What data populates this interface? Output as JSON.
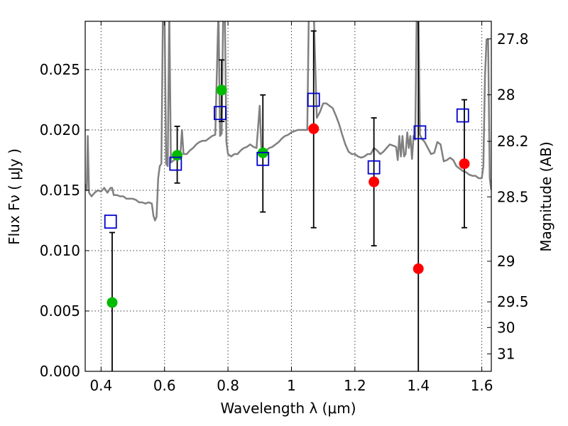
{
  "chart_data": {
    "type": "scatter",
    "xlabel": "Wavelength  λ (μm)",
    "ylabel": "Flux  Fν  ( μJy )",
    "y2label": "Magnitude (AB)",
    "xlim": [
      0.35,
      1.63
    ],
    "ylim": [
      0.0,
      0.029
    ],
    "x_ticks": [
      {
        "value": 0.4,
        "label": "0.4"
      },
      {
        "value": 0.6,
        "label": "0.6"
      },
      {
        "value": 0.8,
        "label": "0.8"
      },
      {
        "value": 1.0,
        "label": "1"
      },
      {
        "value": 1.2,
        "label": "1.2"
      },
      {
        "value": 1.4,
        "label": "1.4"
      },
      {
        "value": 1.6,
        "label": "1.6"
      }
    ],
    "y_ticks": [
      {
        "value": 0.0,
        "label": "0.000"
      },
      {
        "value": 0.005,
        "label": "0.005"
      },
      {
        "value": 0.01,
        "label": "0.010"
      },
      {
        "value": 0.015,
        "label": "0.015"
      },
      {
        "value": 0.02,
        "label": "0.020"
      },
      {
        "value": 0.025,
        "label": "0.025"
      }
    ],
    "mag_ticks": [
      {
        "value": 27.8,
        "label": "27.8"
      },
      {
        "value": 28.0,
        "label": "28"
      },
      {
        "value": 28.2,
        "label": "28.2"
      },
      {
        "value": 28.5,
        "label": "28.5"
      },
      {
        "value": 29.0,
        "label": "29"
      },
      {
        "value": 29.5,
        "label": "29.5"
      },
      {
        "value": 30.0,
        "label": "30"
      },
      {
        "value": 31.0,
        "label": "31"
      }
    ],
    "grid": true,
    "colors": {
      "model": "#808080",
      "observed_green": "#00bb00",
      "observed_red": "#ff0000",
      "model_box": "#0000cc",
      "errorbar": "#000000"
    },
    "model_spectrum": [
      [
        0.35,
        0.0155
      ],
      [
        0.355,
        0.015
      ],
      [
        0.358,
        0.0195
      ],
      [
        0.362,
        0.0148
      ],
      [
        0.37,
        0.0145
      ],
      [
        0.38,
        0.0148
      ],
      [
        0.39,
        0.015
      ],
      [
        0.4,
        0.0149
      ],
      [
        0.41,
        0.0152
      ],
      [
        0.42,
        0.0148
      ],
      [
        0.43,
        0.0152
      ],
      [
        0.435,
        0.0152
      ],
      [
        0.44,
        0.0146
      ],
      [
        0.45,
        0.0146
      ],
      [
        0.46,
        0.0145
      ],
      [
        0.47,
        0.0145
      ],
      [
        0.48,
        0.0143
      ],
      [
        0.49,
        0.0143
      ],
      [
        0.5,
        0.0143
      ],
      [
        0.51,
        0.0142
      ],
      [
        0.52,
        0.014
      ],
      [
        0.53,
        0.014
      ],
      [
        0.54,
        0.0139
      ],
      [
        0.55,
        0.014
      ],
      [
        0.56,
        0.0139
      ],
      [
        0.565,
        0.0129
      ],
      [
        0.57,
        0.0125
      ],
      [
        0.575,
        0.0128
      ],
      [
        0.58,
        0.016
      ],
      [
        0.585,
        0.017
      ],
      [
        0.59,
        0.0172
      ],
      [
        0.595,
        0.03
      ],
      [
        0.6,
        0.03
      ],
      [
        0.605,
        0.0172
      ],
      [
        0.61,
        0.017
      ],
      [
        0.615,
        0.03
      ],
      [
        0.62,
        0.0173
      ],
      [
        0.63,
        0.0175
      ],
      [
        0.64,
        0.0178
      ],
      [
        0.65,
        0.018
      ],
      [
        0.655,
        0.02
      ],
      [
        0.66,
        0.018
      ],
      [
        0.67,
        0.018
      ],
      [
        0.68,
        0.0183
      ],
      [
        0.69,
        0.0185
      ],
      [
        0.7,
        0.0188
      ],
      [
        0.71,
        0.019
      ],
      [
        0.72,
        0.0191
      ],
      [
        0.73,
        0.0191
      ],
      [
        0.74,
        0.0193
      ],
      [
        0.75,
        0.0195
      ],
      [
        0.76,
        0.0196
      ],
      [
        0.77,
        0.03
      ],
      [
        0.775,
        0.0195
      ],
      [
        0.78,
        0.0197
      ],
      [
        0.785,
        0.03
      ],
      [
        0.79,
        0.03
      ],
      [
        0.795,
        0.019
      ],
      [
        0.8,
        0.018
      ],
      [
        0.81,
        0.0178
      ],
      [
        0.82,
        0.018
      ],
      [
        0.83,
        0.018
      ],
      [
        0.84,
        0.0183
      ],
      [
        0.85,
        0.0185
      ],
      [
        0.86,
        0.0186
      ],
      [
        0.87,
        0.0188
      ],
      [
        0.88,
        0.0186
      ],
      [
        0.89,
        0.0185
      ],
      [
        0.9,
        0.022
      ],
      [
        0.905,
        0.0186
      ],
      [
        0.91,
        0.0185
      ],
      [
        0.92,
        0.0183
      ],
      [
        0.93,
        0.0185
      ],
      [
        0.94,
        0.0186
      ],
      [
        0.95,
        0.0188
      ],
      [
        0.96,
        0.019
      ],
      [
        0.97,
        0.0193
      ],
      [
        0.98,
        0.0195
      ],
      [
        0.99,
        0.0196
      ],
      [
        1.0,
        0.0198
      ],
      [
        1.01,
        0.0199
      ],
      [
        1.02,
        0.02
      ],
      [
        1.03,
        0.02
      ],
      [
        1.04,
        0.02
      ],
      [
        1.05,
        0.02
      ],
      [
        1.055,
        0.03
      ],
      [
        1.06,
        0.03
      ],
      [
        1.065,
        0.03
      ],
      [
        1.07,
        0.03
      ],
      [
        1.08,
        0.021
      ],
      [
        1.09,
        0.0215
      ],
      [
        1.1,
        0.0222
      ],
      [
        1.11,
        0.0222
      ],
      [
        1.12,
        0.022
      ],
      [
        1.13,
        0.0218
      ],
      [
        1.14,
        0.0212
      ],
      [
        1.15,
        0.0205
      ],
      [
        1.16,
        0.0196
      ],
      [
        1.17,
        0.0188
      ],
      [
        1.18,
        0.0182
      ],
      [
        1.19,
        0.018
      ],
      [
        1.2,
        0.018
      ],
      [
        1.21,
        0.0178
      ],
      [
        1.22,
        0.0177
      ],
      [
        1.23,
        0.0178
      ],
      [
        1.24,
        0.018
      ],
      [
        1.25,
        0.018
      ],
      [
        1.26,
        0.0185
      ],
      [
        1.27,
        0.0183
      ],
      [
        1.28,
        0.018
      ],
      [
        1.29,
        0.0182
      ],
      [
        1.3,
        0.0185
      ],
      [
        1.31,
        0.0188
      ],
      [
        1.32,
        0.0187
      ],
      [
        1.33,
        0.0186
      ],
      [
        1.335,
        0.0175
      ],
      [
        1.34,
        0.0195
      ],
      [
        1.345,
        0.0178
      ],
      [
        1.35,
        0.0195
      ],
      [
        1.355,
        0.0178
      ],
      [
        1.36,
        0.018
      ],
      [
        1.365,
        0.0198
      ],
      [
        1.37,
        0.0185
      ],
      [
        1.375,
        0.0195
      ],
      [
        1.38,
        0.0176
      ],
      [
        1.385,
        0.0195
      ],
      [
        1.39,
        0.0192
      ],
      [
        1.395,
        0.03
      ],
      [
        1.4,
        0.03
      ],
      [
        1.405,
        0.0196
      ],
      [
        1.41,
        0.0193
      ],
      [
        1.42,
        0.019
      ],
      [
        1.43,
        0.0185
      ],
      [
        1.44,
        0.018
      ],
      [
        1.45,
        0.0181
      ],
      [
        1.46,
        0.019
      ],
      [
        1.47,
        0.0188
      ],
      [
        1.48,
        0.0174
      ],
      [
        1.49,
        0.0175
      ],
      [
        1.5,
        0.0177
      ],
      [
        1.51,
        0.0175
      ],
      [
        1.52,
        0.017
      ],
      [
        1.53,
        0.0168
      ],
      [
        1.54,
        0.0166
      ],
      [
        1.55,
        0.0165
      ],
      [
        1.56,
        0.0163
      ],
      [
        1.57,
        0.0162
      ],
      [
        1.58,
        0.0162
      ],
      [
        1.59,
        0.016
      ],
      [
        1.6,
        0.016
      ],
      [
        1.605,
        0.017
      ],
      [
        1.61,
        0.0245
      ],
      [
        1.615,
        0.0275
      ],
      [
        1.62,
        0.0275
      ],
      [
        1.625,
        0.016
      ],
      [
        1.63,
        0.015
      ]
    ],
    "model_points": [
      {
        "x": 0.43,
        "y": 0.0124
      },
      {
        "x": 0.635,
        "y": 0.0172
      },
      {
        "x": 0.775,
        "y": 0.0214
      },
      {
        "x": 0.91,
        "y": 0.0176
      },
      {
        "x": 1.07,
        "y": 0.0225
      },
      {
        "x": 1.26,
        "y": 0.0169
      },
      {
        "x": 1.405,
        "y": 0.0198
      },
      {
        "x": 1.54,
        "y": 0.0212
      }
    ],
    "observed_points": [
      {
        "x": 0.435,
        "y": 0.0057,
        "yerr_low": 0.0,
        "yerr_high": 0.0115,
        "color": "green"
      },
      {
        "x": 0.64,
        "y": 0.0179,
        "yerr_low": 0.0156,
        "yerr_high": 0.0203,
        "color": "green"
      },
      {
        "x": 0.78,
        "y": 0.0233,
        "yerr_low": 0.0207,
        "yerr_high": 0.0258,
        "color": "green"
      },
      {
        "x": 0.91,
        "y": 0.0181,
        "yerr_low": 0.0132,
        "yerr_high": 0.0229,
        "color": "green"
      },
      {
        "x": 1.07,
        "y": 0.0201,
        "yerr_low": 0.0119,
        "yerr_high": 0.0282,
        "color": "red"
      },
      {
        "x": 1.26,
        "y": 0.0157,
        "yerr_low": 0.0104,
        "yerr_high": 0.021,
        "color": "red"
      },
      {
        "x": 1.4,
        "y": 0.0085,
        "yerr_low": 0.0,
        "yerr_high": 0.0305,
        "color": "red"
      },
      {
        "x": 1.545,
        "y": 0.0172,
        "yerr_low": 0.0119,
        "yerr_high": 0.0225,
        "color": "red"
      }
    ]
  }
}
